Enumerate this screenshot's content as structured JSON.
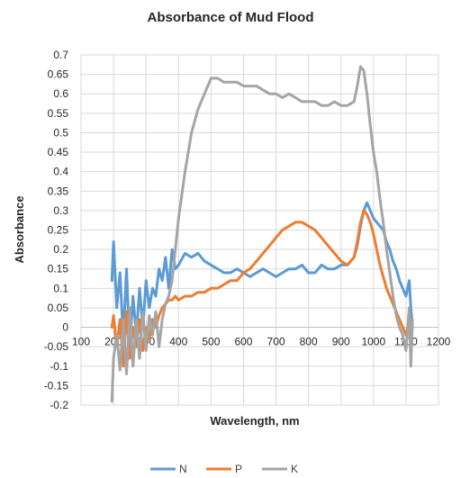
{
  "chart_data": {
    "type": "line",
    "title": "Absorbance of Mud Flood",
    "xlabel": "Wavelength, nm",
    "ylabel": "Absorbance",
    "xlim": [
      100,
      1200
    ],
    "ylim": [
      -0.2,
      0.7
    ],
    "xticks": [
      100,
      200,
      300,
      400,
      500,
      600,
      700,
      800,
      900,
      1000,
      1100,
      1200
    ],
    "yticks": [
      -0.2,
      -0.15,
      -0.1,
      -0.05,
      0,
      0.05,
      0.1,
      0.15,
      0.2,
      0.25,
      0.3,
      0.35,
      0.4,
      0.45,
      0.5,
      0.55,
      0.6,
      0.65,
      0.7
    ],
    "ytick_labels": [
      "-0.2",
      "-0.15",
      "-0.1",
      "-0.05",
      "0",
      "0.05",
      "0.1",
      "0.15",
      "0.2",
      "0.25",
      "0.3",
      "0.35",
      "0.4",
      "0.45",
      "0.5",
      "0.55",
      "0.6",
      "0.65",
      "0.7"
    ],
    "grid": true,
    "legend_position": "bottom",
    "series": [
      {
        "name": "N",
        "color": "#5B9BD5",
        "x": [
          195,
          200,
          210,
          220,
          230,
          240,
          250,
          260,
          270,
          280,
          290,
          300,
          310,
          320,
          330,
          340,
          350,
          360,
          370,
          380,
          390,
          400,
          420,
          440,
          460,
          480,
          500,
          520,
          540,
          560,
          580,
          600,
          620,
          640,
          660,
          680,
          700,
          720,
          740,
          760,
          780,
          800,
          820,
          840,
          860,
          880,
          900,
          920,
          940,
          950,
          960,
          970,
          980,
          990,
          1000,
          1010,
          1020,
          1030,
          1040,
          1050,
          1060,
          1070,
          1080,
          1090,
          1100,
          1110,
          1115,
          1120
        ],
        "y": [
          0.12,
          0.22,
          0.05,
          0.14,
          -0.03,
          0.15,
          -0.05,
          0.08,
          -0.02,
          0.1,
          0.0,
          0.12,
          0.05,
          0.1,
          0.08,
          0.15,
          0.12,
          0.18,
          0.1,
          0.2,
          0.15,
          0.16,
          0.19,
          0.18,
          0.19,
          0.17,
          0.16,
          0.15,
          0.14,
          0.14,
          0.15,
          0.14,
          0.13,
          0.14,
          0.15,
          0.14,
          0.13,
          0.14,
          0.15,
          0.15,
          0.16,
          0.14,
          0.14,
          0.16,
          0.15,
          0.15,
          0.16,
          0.16,
          0.18,
          0.21,
          0.26,
          0.3,
          0.32,
          0.3,
          0.28,
          0.27,
          0.26,
          0.25,
          0.22,
          0.2,
          0.17,
          0.15,
          0.12,
          0.1,
          0.08,
          0.12,
          0.05,
          0.0
        ]
      },
      {
        "name": "P",
        "color": "#ED7D31",
        "x": [
          195,
          200,
          210,
          220,
          230,
          240,
          250,
          260,
          270,
          280,
          290,
          300,
          310,
          320,
          330,
          340,
          350,
          360,
          370,
          380,
          390,
          400,
          420,
          440,
          460,
          480,
          500,
          520,
          540,
          560,
          580,
          600,
          620,
          640,
          660,
          680,
          700,
          720,
          740,
          760,
          780,
          800,
          820,
          840,
          860,
          880,
          900,
          920,
          940,
          950,
          960,
          970,
          980,
          990,
          1000,
          1010,
          1020,
          1030,
          1040,
          1050,
          1060,
          1070,
          1080,
          1090,
          1100,
          1110,
          1115,
          1120
        ],
        "y": [
          0.0,
          0.03,
          -0.05,
          0.02,
          -0.1,
          0.04,
          -0.08,
          0.0,
          -0.05,
          0.02,
          -0.06,
          0.0,
          -0.03,
          0.02,
          0.0,
          0.03,
          0.05,
          0.06,
          0.07,
          0.07,
          0.08,
          0.07,
          0.08,
          0.08,
          0.09,
          0.09,
          0.1,
          0.1,
          0.11,
          0.12,
          0.12,
          0.14,
          0.15,
          0.17,
          0.19,
          0.21,
          0.23,
          0.25,
          0.26,
          0.27,
          0.27,
          0.26,
          0.25,
          0.23,
          0.21,
          0.19,
          0.17,
          0.16,
          0.18,
          0.22,
          0.27,
          0.3,
          0.29,
          0.27,
          0.24,
          0.2,
          0.16,
          0.13,
          0.1,
          0.08,
          0.06,
          0.04,
          0.02,
          0.0,
          -0.02,
          0.01,
          -0.03,
          0.0
        ]
      },
      {
        "name": "K",
        "color": "#A5A5A5",
        "x": [
          195,
          200,
          210,
          220,
          230,
          240,
          250,
          260,
          270,
          280,
          290,
          300,
          310,
          320,
          330,
          340,
          350,
          360,
          370,
          380,
          390,
          400,
          420,
          440,
          460,
          480,
          500,
          520,
          540,
          560,
          580,
          600,
          620,
          640,
          660,
          680,
          700,
          720,
          740,
          760,
          780,
          800,
          820,
          840,
          860,
          880,
          900,
          920,
          940,
          950,
          960,
          970,
          980,
          990,
          1000,
          1010,
          1020,
          1030,
          1040,
          1050,
          1060,
          1070,
          1080,
          1090,
          1100,
          1110,
          1115,
          1120
        ],
        "y": [
          -0.19,
          -0.08,
          -0.02,
          -0.11,
          0.02,
          -0.12,
          0.05,
          -0.1,
          0.02,
          -0.08,
          0.04,
          -0.06,
          0.03,
          -0.02,
          0.04,
          -0.05,
          0.02,
          0.06,
          0.08,
          0.12,
          0.2,
          0.28,
          0.4,
          0.5,
          0.56,
          0.6,
          0.64,
          0.64,
          0.63,
          0.63,
          0.63,
          0.62,
          0.62,
          0.62,
          0.61,
          0.6,
          0.6,
          0.59,
          0.6,
          0.59,
          0.58,
          0.58,
          0.58,
          0.57,
          0.57,
          0.58,
          0.57,
          0.57,
          0.58,
          0.62,
          0.67,
          0.66,
          0.6,
          0.52,
          0.45,
          0.4,
          0.33,
          0.27,
          0.2,
          0.14,
          0.08,
          0.03,
          0.0,
          -0.02,
          -0.06,
          0.05,
          -0.1,
          0.02
        ]
      }
    ]
  }
}
